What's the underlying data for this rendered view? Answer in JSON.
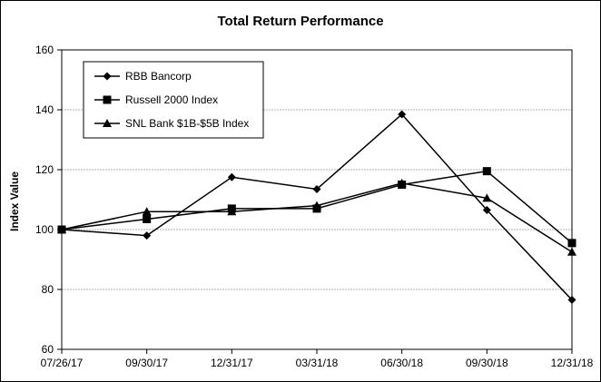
{
  "chart_data": {
    "type": "line",
    "title": "Total Return Performance",
    "xlabel": "",
    "ylabel": "Index Value",
    "categories": [
      "07/26/17",
      "09/30/17",
      "12/31/17",
      "03/31/18",
      "06/30/18",
      "09/30/18",
      "12/31/18"
    ],
    "yticks": [
      "60",
      "80",
      "100",
      "120",
      "140",
      "160"
    ],
    "ylim": [
      60,
      160
    ],
    "grid": true,
    "legend_position": "top-left",
    "series": [
      {
        "name": "RBB Bancorp",
        "marker": "diamond",
        "values": [
          100,
          98,
          117.5,
          113.5,
          138.5,
          106.5,
          76.5
        ]
      },
      {
        "name": "Russell 2000 Index",
        "marker": "square",
        "values": [
          100,
          103.5,
          107,
          107,
          115,
          119.5,
          95.5
        ]
      },
      {
        "name": "SNL Bank $1B-$5B Index",
        "marker": "triangle",
        "values": [
          100,
          106,
          106,
          108,
          115.5,
          110.5,
          92.5
        ]
      }
    ],
    "colors": {
      "line": "#000000",
      "grid": "#b0b0b0",
      "background": "#ffffff"
    }
  }
}
